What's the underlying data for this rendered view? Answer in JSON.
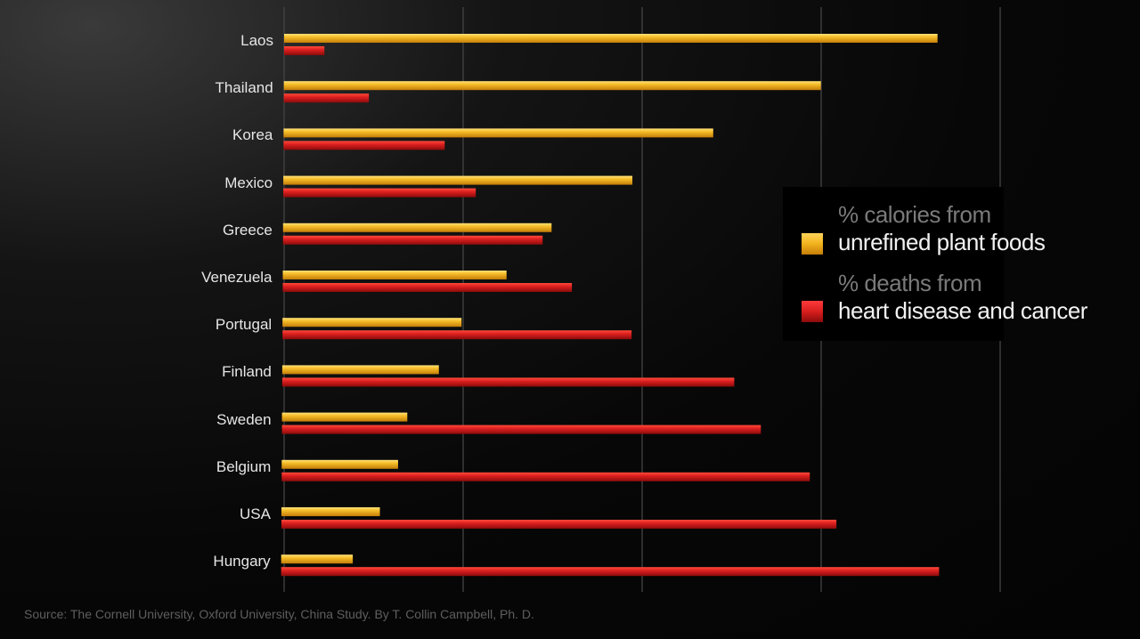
{
  "chart_data": {
    "type": "bar",
    "orientation": "horizontal",
    "categories": [
      "Laos",
      "Thailand",
      "Korea",
      "Mexico",
      "Greece",
      "Venezuela",
      "Portugal",
      "Finland",
      "Sweden",
      "Belgium",
      "USA",
      "Hungary"
    ],
    "series": [
      {
        "name": "unrefined plant foods",
        "color": "#f2b21c",
        "values": [
          73,
          60,
          48,
          39,
          30,
          25,
          20,
          17.5,
          14,
          13,
          11,
          8
        ]
      },
      {
        "name": "heart disease and cancer",
        "color": "#d81e1e",
        "values": [
          4.5,
          9.5,
          18,
          21.5,
          29,
          32.3,
          39,
          50.5,
          53.5,
          59,
          62,
          73.5
        ]
      }
    ],
    "legend_titles": [
      "% calories from",
      "% deaths from"
    ],
    "legend_position": "right",
    "grid": true,
    "xlim": [
      0,
      80
    ],
    "source": "Source: The Cornell University, Oxford University, China Study. By T. Collin Campbell, Ph. D."
  },
  "colors": {
    "plant": "#f2b21c",
    "deaths": "#d81e1e",
    "background": "#050505"
  }
}
